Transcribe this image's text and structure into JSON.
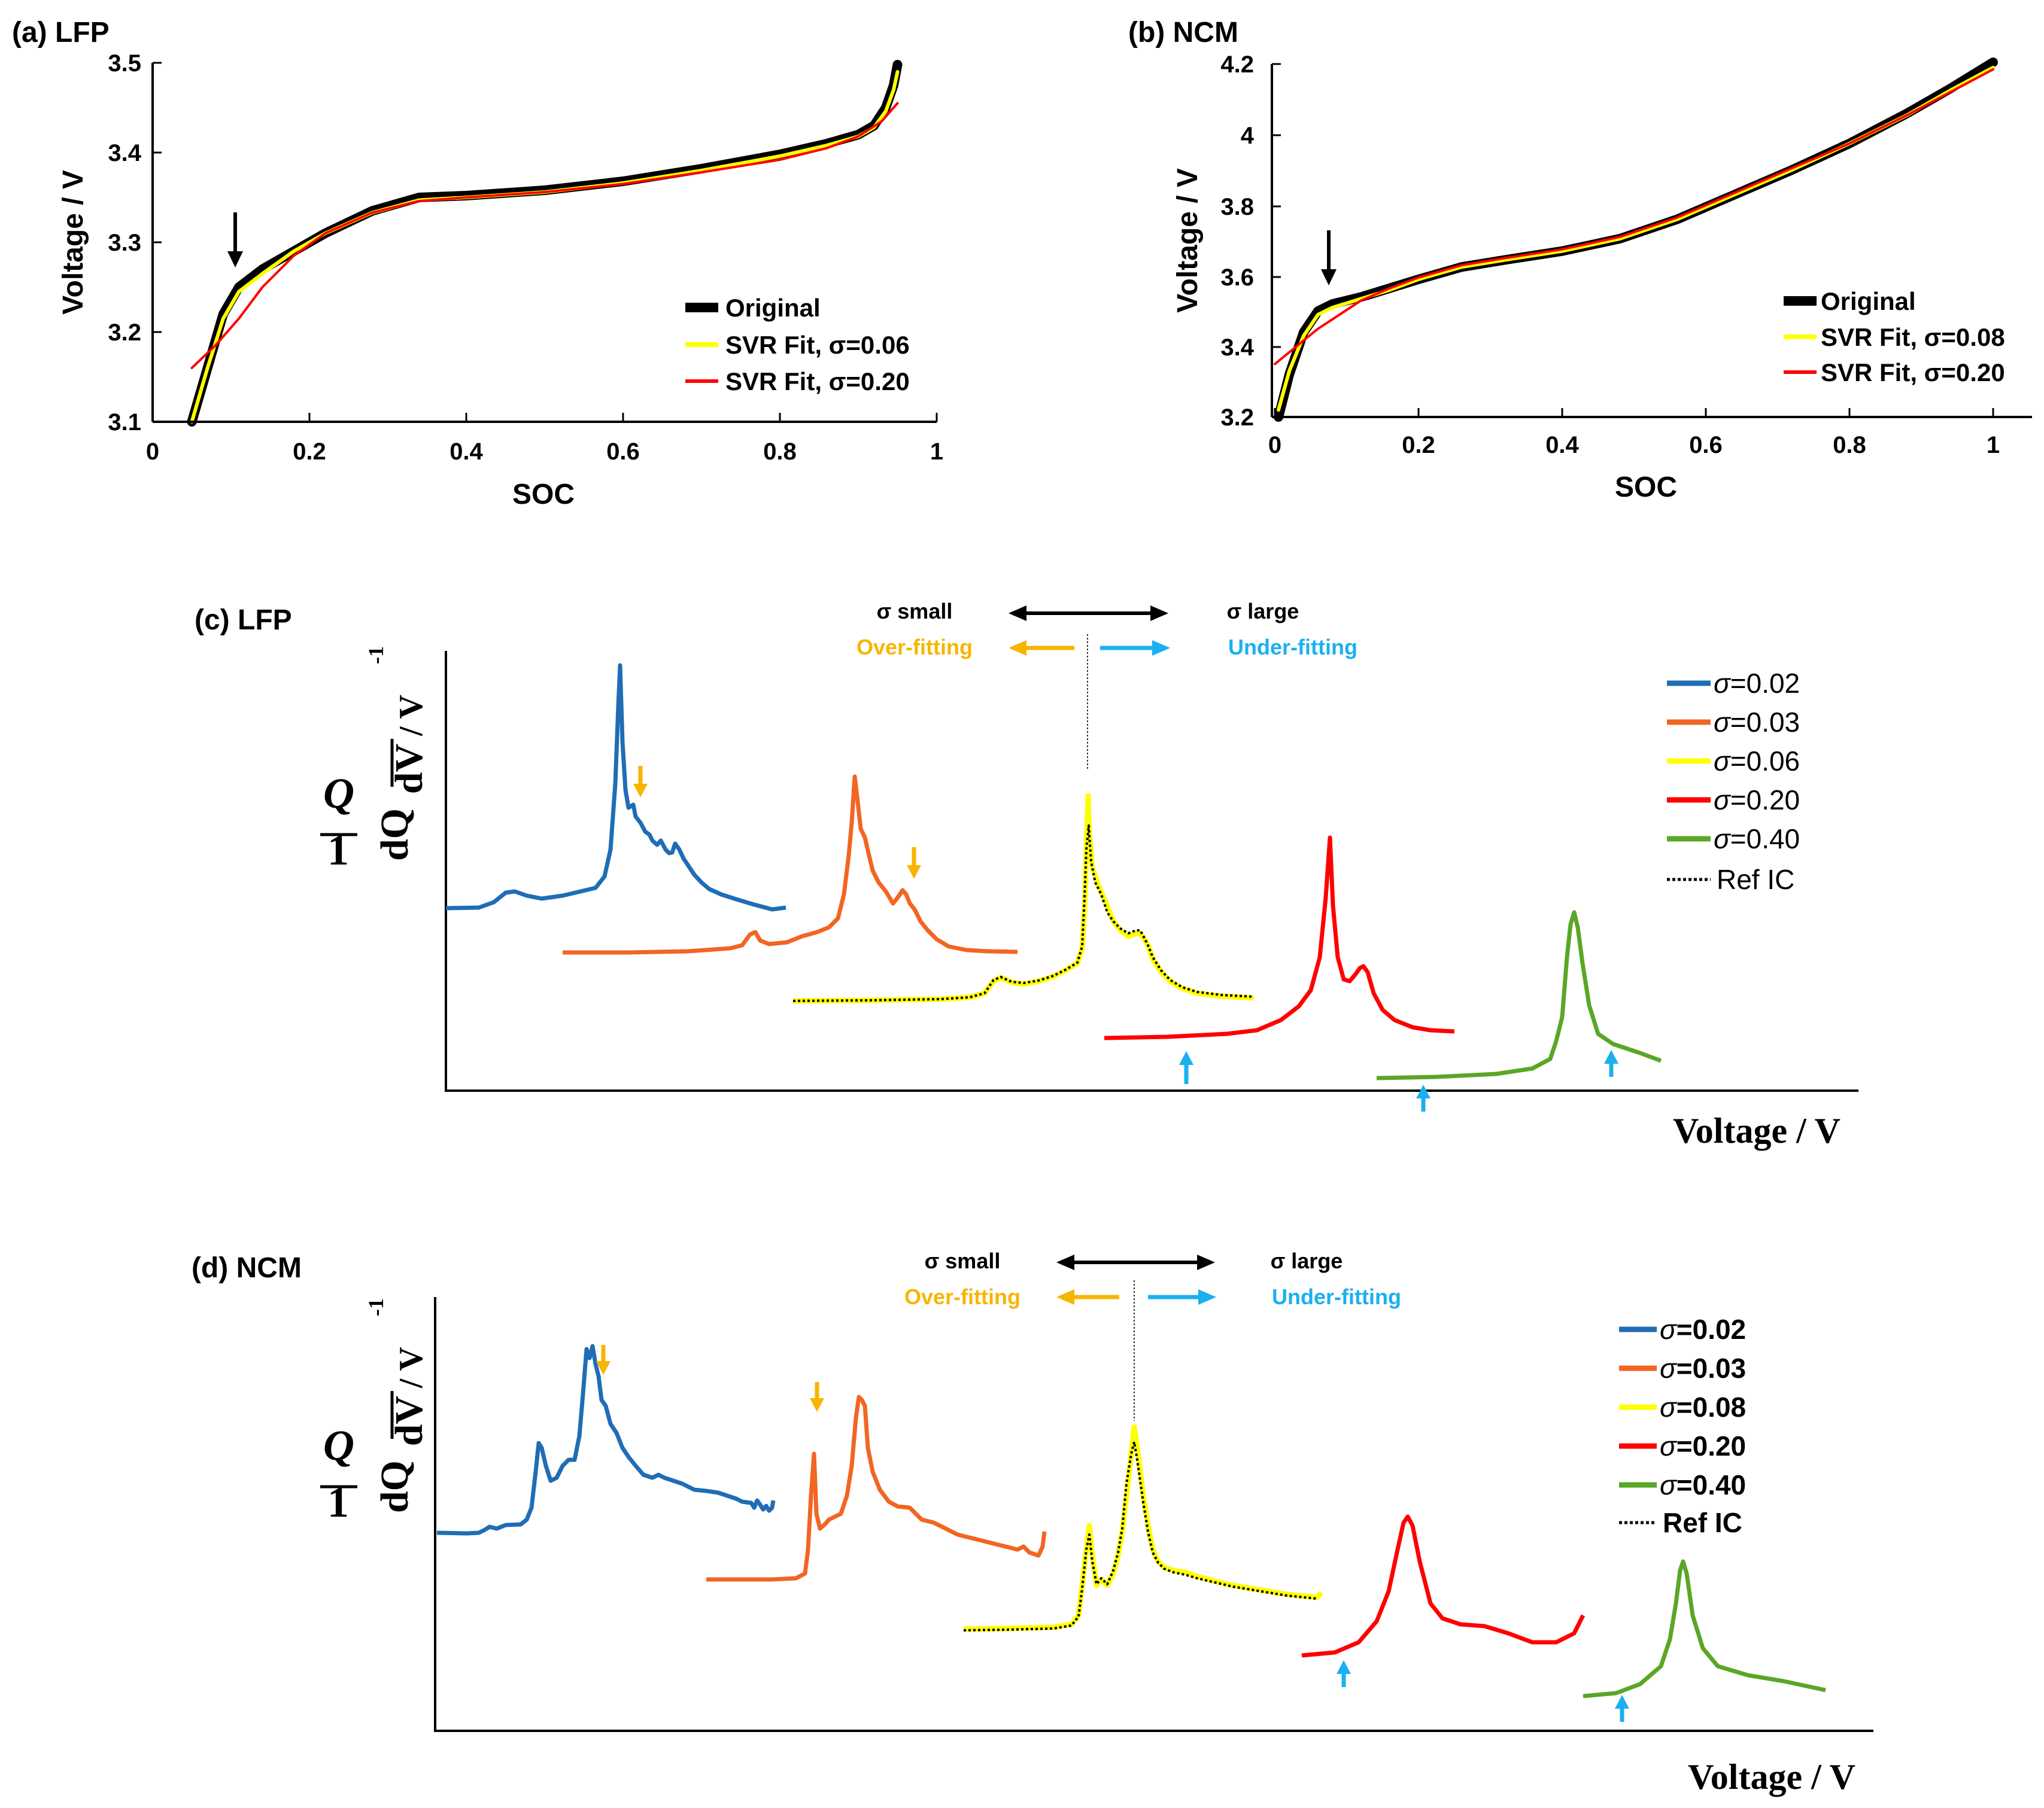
{
  "colors": {
    "blue": "#1f6db5",
    "orange": "#f26522",
    "yellow": "#ffff00",
    "red": "#ff0000",
    "green": "#5aa626",
    "black": "#000000",
    "gold": "#f7b500",
    "cyan": "#1ab0ef"
  },
  "chart_data": [
    {
      "id": "a",
      "type": "line",
      "title": "(a) LFP",
      "xlabel": "SOC",
      "ylabel": "Voltage / V",
      "xlim": [
        0,
        1
      ],
      "ylim": [
        3.1,
        3.5
      ],
      "xticks": [
        "0",
        "0.2",
        "0.4",
        "0.6",
        "0.8",
        "1"
      ],
      "yticks": [
        "3.1",
        "3.2",
        "3.3",
        "3.4",
        "3.5"
      ],
      "series": [
        {
          "name": "Original",
          "color": "#000000",
          "x": [
            0.05,
            0.07,
            0.09,
            0.11,
            0.14,
            0.18,
            0.22,
            0.28,
            0.34,
            0.4,
            0.5,
            0.6,
            0.7,
            0.8,
            0.86,
            0.9,
            0.92,
            0.935,
            0.945,
            0.95
          ],
          "y": [
            3.1,
            3.16,
            3.22,
            3.25,
            3.27,
            3.29,
            3.31,
            3.335,
            3.35,
            3.352,
            3.358,
            3.368,
            3.382,
            3.398,
            3.41,
            3.42,
            3.43,
            3.45,
            3.475,
            3.498
          ]
        },
        {
          "name": "SVR Fit, σ=0.06",
          "color": "#ffff00",
          "x": [
            0.05,
            0.07,
            0.09,
            0.11,
            0.14,
            0.18,
            0.22,
            0.28,
            0.34,
            0.4,
            0.5,
            0.6,
            0.7,
            0.8,
            0.86,
            0.9,
            0.92,
            0.935,
            0.945,
            0.95
          ],
          "y": [
            3.1,
            3.16,
            3.215,
            3.245,
            3.265,
            3.29,
            3.31,
            3.333,
            3.347,
            3.35,
            3.356,
            3.366,
            3.38,
            3.396,
            3.408,
            3.418,
            3.428,
            3.446,
            3.47,
            3.49
          ]
        },
        {
          "name": "SVR Fit, σ=0.20",
          "color": "#ff0000",
          "x": [
            0.05,
            0.08,
            0.11,
            0.14,
            0.18,
            0.22,
            0.28,
            0.34,
            0.4,
            0.5,
            0.6,
            0.7,
            0.8,
            0.86,
            0.9,
            0.93,
            0.95
          ],
          "y": [
            3.16,
            3.185,
            3.215,
            3.25,
            3.285,
            3.31,
            3.333,
            3.346,
            3.35,
            3.356,
            3.365,
            3.378,
            3.392,
            3.405,
            3.418,
            3.435,
            3.455
          ]
        }
      ],
      "legend": [
        "Original",
        "SVR Fit, σ=0.06",
        "SVR Fit, σ=0.20"
      ],
      "annotation": {
        "type": "arrow",
        "x": 0.11,
        "y": 3.26
      }
    },
    {
      "id": "b",
      "type": "line",
      "title": "(b) NCM",
      "xlabel": "SOC",
      "ylabel": "Voltage / V",
      "xlim": [
        0,
        1.05
      ],
      "ylim": [
        3.2,
        4.2
      ],
      "xticks": [
        "0",
        "0.2",
        "0.4",
        "0.6",
        "0.8",
        "1"
      ],
      "yticks": [
        "3.2",
        "3.4",
        "3.6",
        "3.8",
        "4",
        "4.2"
      ],
      "series": [
        {
          "name": "Original",
          "color": "#000000",
          "x": [
            0.005,
            0.02,
            0.04,
            0.06,
            0.08,
            0.12,
            0.16,
            0.2,
            0.26,
            0.32,
            0.4,
            0.48,
            0.56,
            0.64,
            0.72,
            0.8,
            0.88,
            0.94,
            1.0
          ],
          "y": [
            3.2,
            3.32,
            3.44,
            3.5,
            3.52,
            3.54,
            3.565,
            3.59,
            3.625,
            3.645,
            3.67,
            3.705,
            3.76,
            3.83,
            3.9,
            3.975,
            4.06,
            4.13,
            4.205
          ]
        },
        {
          "name": "SVR Fit, σ=0.08",
          "color": "#ffff00",
          "x": [
            0.005,
            0.02,
            0.04,
            0.06,
            0.08,
            0.12,
            0.16,
            0.2,
            0.26,
            0.32,
            0.4,
            0.48,
            0.56,
            0.64,
            0.72,
            0.8,
            0.88,
            0.94,
            1.0
          ],
          "y": [
            3.22,
            3.33,
            3.43,
            3.49,
            3.51,
            3.535,
            3.56,
            3.59,
            3.625,
            3.645,
            3.67,
            3.705,
            3.76,
            3.83,
            3.9,
            3.975,
            4.055,
            4.125,
            4.19
          ]
        },
        {
          "name": "SVR Fit, σ=0.20",
          "color": "#ff0000",
          "x": [
            0.0,
            0.03,
            0.06,
            0.09,
            0.12,
            0.16,
            0.2,
            0.26,
            0.32,
            0.4,
            0.48,
            0.56,
            0.64,
            0.72,
            0.8,
            0.88,
            0.94,
            1.0
          ],
          "y": [
            3.35,
            3.4,
            3.45,
            3.49,
            3.53,
            3.565,
            3.595,
            3.63,
            3.65,
            3.675,
            3.71,
            3.765,
            3.835,
            3.905,
            3.975,
            4.055,
            4.12,
            4.185
          ]
        }
      ],
      "legend": [
        "Original",
        "SVR Fit, σ=0.08",
        "SVR Fit, σ=0.20"
      ],
      "annotation": {
        "type": "arrow",
        "x": 0.075,
        "y": 3.53
      }
    },
    {
      "id": "c",
      "type": "line",
      "title": "(c) LFP",
      "xlabel": "Voltage / V",
      "ylabel_parts": {
        "one": "1",
        "Q": "Q",
        "dQ": "dQ",
        "dV": "dV",
        "unit": "/ V",
        "sup": "-1"
      },
      "note": "Offset incremental-capacity (dQ/dV) curves, arbitrary units, no tick labels",
      "header": {
        "small": "σ small",
        "large": "σ large",
        "over": "Over-fitting",
        "under": "Under-fitting"
      },
      "legend": [
        {
          "sym": "σ",
          "rest": "=0.02"
        },
        {
          "sym": "σ",
          "rest": "=0.03"
        },
        {
          "sym": "σ",
          "rest": "=0.06"
        },
        {
          "sym": "σ",
          "rest": "=0.20"
        },
        {
          "sym": "σ",
          "rest": "=0.40"
        },
        {
          "sym": "",
          "rest": "Ref IC"
        }
      ]
    },
    {
      "id": "d",
      "type": "line",
      "title": "(d) NCM",
      "xlabel": "Voltage / V",
      "ylabel_parts": {
        "one": "1",
        "Q": "Q",
        "dQ": "dQ",
        "dV": "dV",
        "unit": "/ V",
        "sup": "-1"
      },
      "note": "Offset incremental-capacity (dQ/dV) curves, arbitrary units, no tick labels",
      "header": {
        "small": "σ small",
        "large": "σ large",
        "over": "Over-fitting",
        "under": "Under-fitting"
      },
      "legend": [
        {
          "sym": "σ",
          "rest": "=0.02"
        },
        {
          "sym": "σ",
          "rest": "=0.03"
        },
        {
          "sym": "σ",
          "rest": "=0.08"
        },
        {
          "sym": "σ",
          "rest": "=0.20"
        },
        {
          "sym": "σ",
          "rest": "=0.40"
        },
        {
          "sym": "",
          "rest": "Ref IC"
        }
      ]
    }
  ]
}
